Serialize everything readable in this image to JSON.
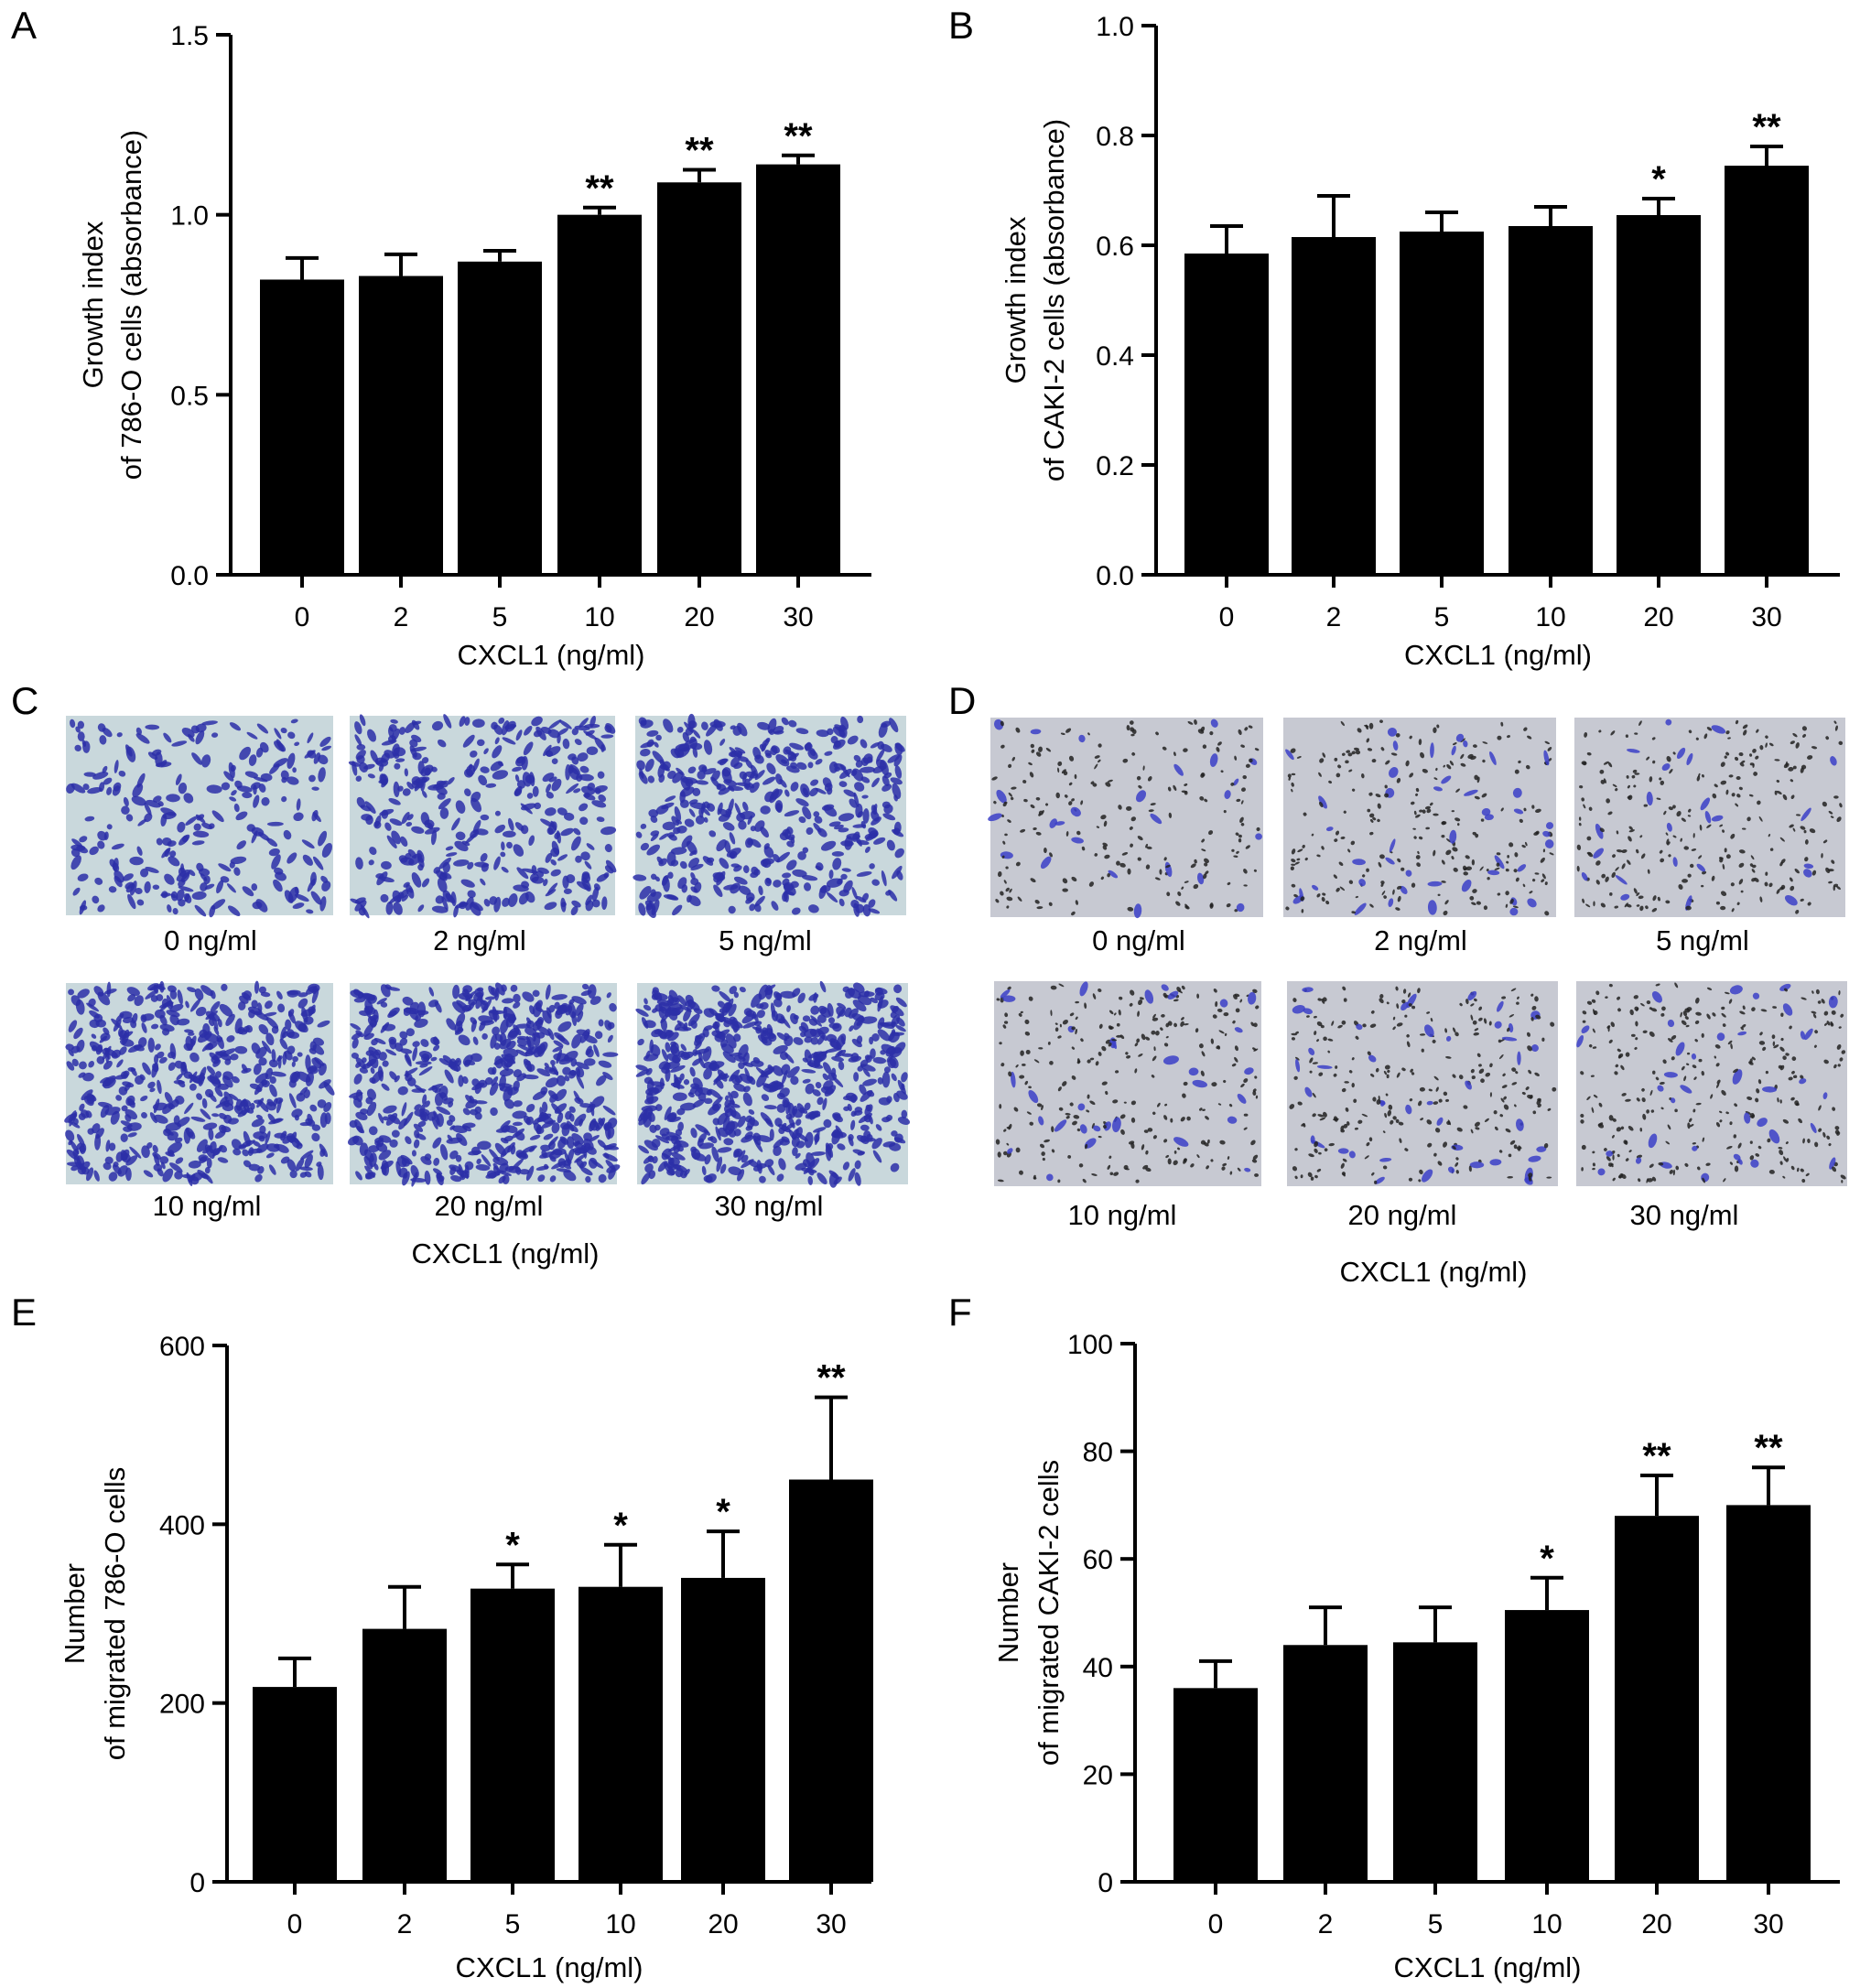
{
  "charts": [
    {
      "id": "A",
      "type": "bar",
      "categories": [
        "0",
        "2",
        "5",
        "10",
        "20",
        "30"
      ],
      "values": [
        0.82,
        0.83,
        0.87,
        1.0,
        1.09,
        1.14
      ],
      "errors": [
        0.06,
        0.06,
        0.03,
        0.02,
        0.035,
        0.025
      ],
      "significance": [
        "",
        "",
        "",
        "**",
        "**",
        "**"
      ],
      "ylim": [
        0,
        1.5
      ],
      "yticks": [
        "0.0",
        "0.5",
        "1.0",
        "1.5"
      ],
      "ylabel_lines": [
        "Growth index",
        "of 786-O cells (absorbance)"
      ],
      "xlabel": "CXCL1 (ng/ml)"
    },
    {
      "id": "B",
      "type": "bar",
      "categories": [
        "0",
        "2",
        "5",
        "10",
        "20",
        "30"
      ],
      "values": [
        0.585,
        0.615,
        0.625,
        0.635,
        0.655,
        0.745
      ],
      "errors": [
        0.05,
        0.075,
        0.035,
        0.035,
        0.03,
        0.035
      ],
      "significance": [
        "",
        "",
        "",
        "",
        "*",
        "**"
      ],
      "ylim": [
        0,
        1.0
      ],
      "yticks": [
        "0.0",
        "0.2",
        "0.4",
        "0.6",
        "0.8",
        "1.0"
      ],
      "ylabel_lines": [
        "Growth index",
        "of CAKI-2 cells (absorbance)"
      ],
      "xlabel": "CXCL1 (ng/ml)"
    },
    {
      "id": "E",
      "type": "bar",
      "categories": [
        "0",
        "2",
        "5",
        "10",
        "20",
        "30"
      ],
      "values": [
        218,
        283,
        328,
        330,
        340,
        450
      ],
      "errors": [
        32,
        47,
        27,
        47,
        52,
        92
      ],
      "significance": [
        "",
        "",
        "*",
        "*",
        "*",
        "**"
      ],
      "ylim": [
        0,
        600
      ],
      "yticks": [
        "0",
        "200",
        "400",
        "600"
      ],
      "ylabel_lines": [
        "Number",
        "of migrated 786-O cells"
      ],
      "xlabel": "CXCL1 (ng/ml)"
    },
    {
      "id": "F",
      "type": "bar",
      "categories": [
        "0",
        "2",
        "5",
        "10",
        "20",
        "30"
      ],
      "values": [
        36,
        44,
        44.5,
        50.5,
        68,
        70
      ],
      "errors": [
        5,
        7,
        6.5,
        6,
        7.5,
        7
      ],
      "significance": [
        "",
        "",
        "",
        "*",
        "**",
        "**"
      ],
      "ylim": [
        0,
        100
      ],
      "yticks": [
        "0",
        "20",
        "40",
        "60",
        "80",
        "100"
      ],
      "ylabel_lines": [
        "Number",
        "of migrated CAKI-2 cells"
      ],
      "xlabel": "CXCL1 (ng/ml)"
    }
  ],
  "micrographs": [
    {
      "id": "C",
      "labels": [
        "0 ng/ml",
        "2 ng/ml",
        "5 ng/ml",
        "10 ng/ml",
        "20 ng/ml",
        "30 ng/ml"
      ],
      "density": [
        0.25,
        0.45,
        0.6,
        0.75,
        0.85,
        0.95
      ],
      "stain_color": "#2b2fa8",
      "background_color": "#c9d8dc",
      "xlabel": "CXCL1 (ng/ml)"
    },
    {
      "id": "D",
      "labels": [
        "0 ng/ml",
        "2 ng/ml",
        "5 ng/ml",
        "10 ng/ml",
        "20 ng/ml",
        "30 ng/ml"
      ],
      "density": [
        0.2,
        0.3,
        0.3,
        0.32,
        0.34,
        0.38
      ],
      "stain_color": "#3b3fc8",
      "background_color": "#c7c9d2",
      "xlabel": "CXCL1 (ng/ml)"
    }
  ],
  "bar_color": "#000000"
}
